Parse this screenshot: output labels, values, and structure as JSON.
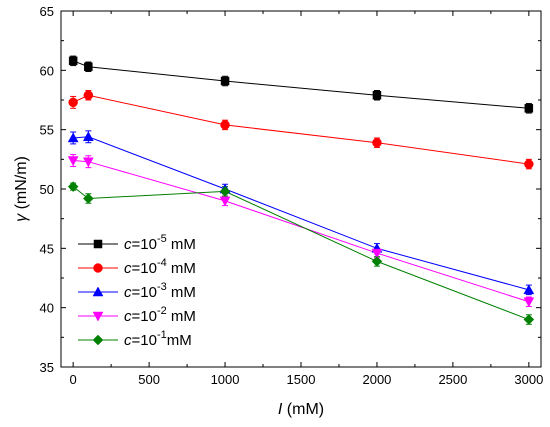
{
  "chart_data": {
    "type": "line",
    "title": "",
    "xlabel": {
      "var": "I",
      "unit": " (mM)"
    },
    "ylabel": {
      "var": "γ",
      "unit": " (mN/m)"
    },
    "xlim": [
      -80,
      3080
    ],
    "ylim": [
      35,
      65
    ],
    "xticks": [
      0,
      500,
      1000,
      1500,
      2000,
      2500,
      3000
    ],
    "yticks": [
      35,
      40,
      45,
      50,
      55,
      60,
      65
    ],
    "x": [
      0,
      100,
      1000,
      2000,
      3000
    ],
    "grid": false,
    "legend_position": "bottom-left",
    "series": [
      {
        "name": "c=10-5 mM",
        "label_parts": {
          "var": "c",
          "base": "=10",
          "exp": "-5",
          "unit": " mM"
        },
        "marker": "square",
        "color": "#000000",
        "values": [
          60.8,
          60.3,
          59.1,
          57.9,
          56.8
        ],
        "errors": [
          0.4,
          0.4,
          0.4,
          0.4,
          0.4
        ]
      },
      {
        "name": "c=10-4 mM",
        "label_parts": {
          "var": "c",
          "base": "=10",
          "exp": "-4",
          "unit": " mM"
        },
        "marker": "circle",
        "color": "#ff0000",
        "values": [
          57.3,
          57.9,
          55.4,
          53.9,
          52.1
        ],
        "errors": [
          0.5,
          0.4,
          0.4,
          0.4,
          0.4
        ]
      },
      {
        "name": "c=10-3 mM",
        "label_parts": {
          "var": "c",
          "base": "=10",
          "exp": "-3",
          "unit": " mM"
        },
        "marker": "triangle-up",
        "color": "#0000ff",
        "values": [
          54.3,
          54.4,
          50.0,
          45.0,
          41.5
        ],
        "errors": [
          0.5,
          0.5,
          0.4,
          0.4,
          0.4
        ]
      },
      {
        "name": "c=10-2 mM",
        "label_parts": {
          "var": "c",
          "base": "=10",
          "exp": "-2",
          "unit": " mM"
        },
        "marker": "triangle-down",
        "color": "#ff00ff",
        "values": [
          52.4,
          52.3,
          49.0,
          44.6,
          40.5
        ],
        "errors": [
          0.5,
          0.5,
          0.4,
          0.4,
          0.4
        ]
      },
      {
        "name": "c=10-1 mM",
        "label_parts": {
          "var": "c",
          "base": "=10",
          "exp": "-1",
          "unit": "mM"
        },
        "marker": "diamond",
        "color": "#008000",
        "values": [
          50.2,
          49.2,
          49.8,
          43.9,
          39.0
        ],
        "errors": [
          0.3,
          0.4,
          0.4,
          0.4,
          0.4
        ]
      }
    ]
  }
}
